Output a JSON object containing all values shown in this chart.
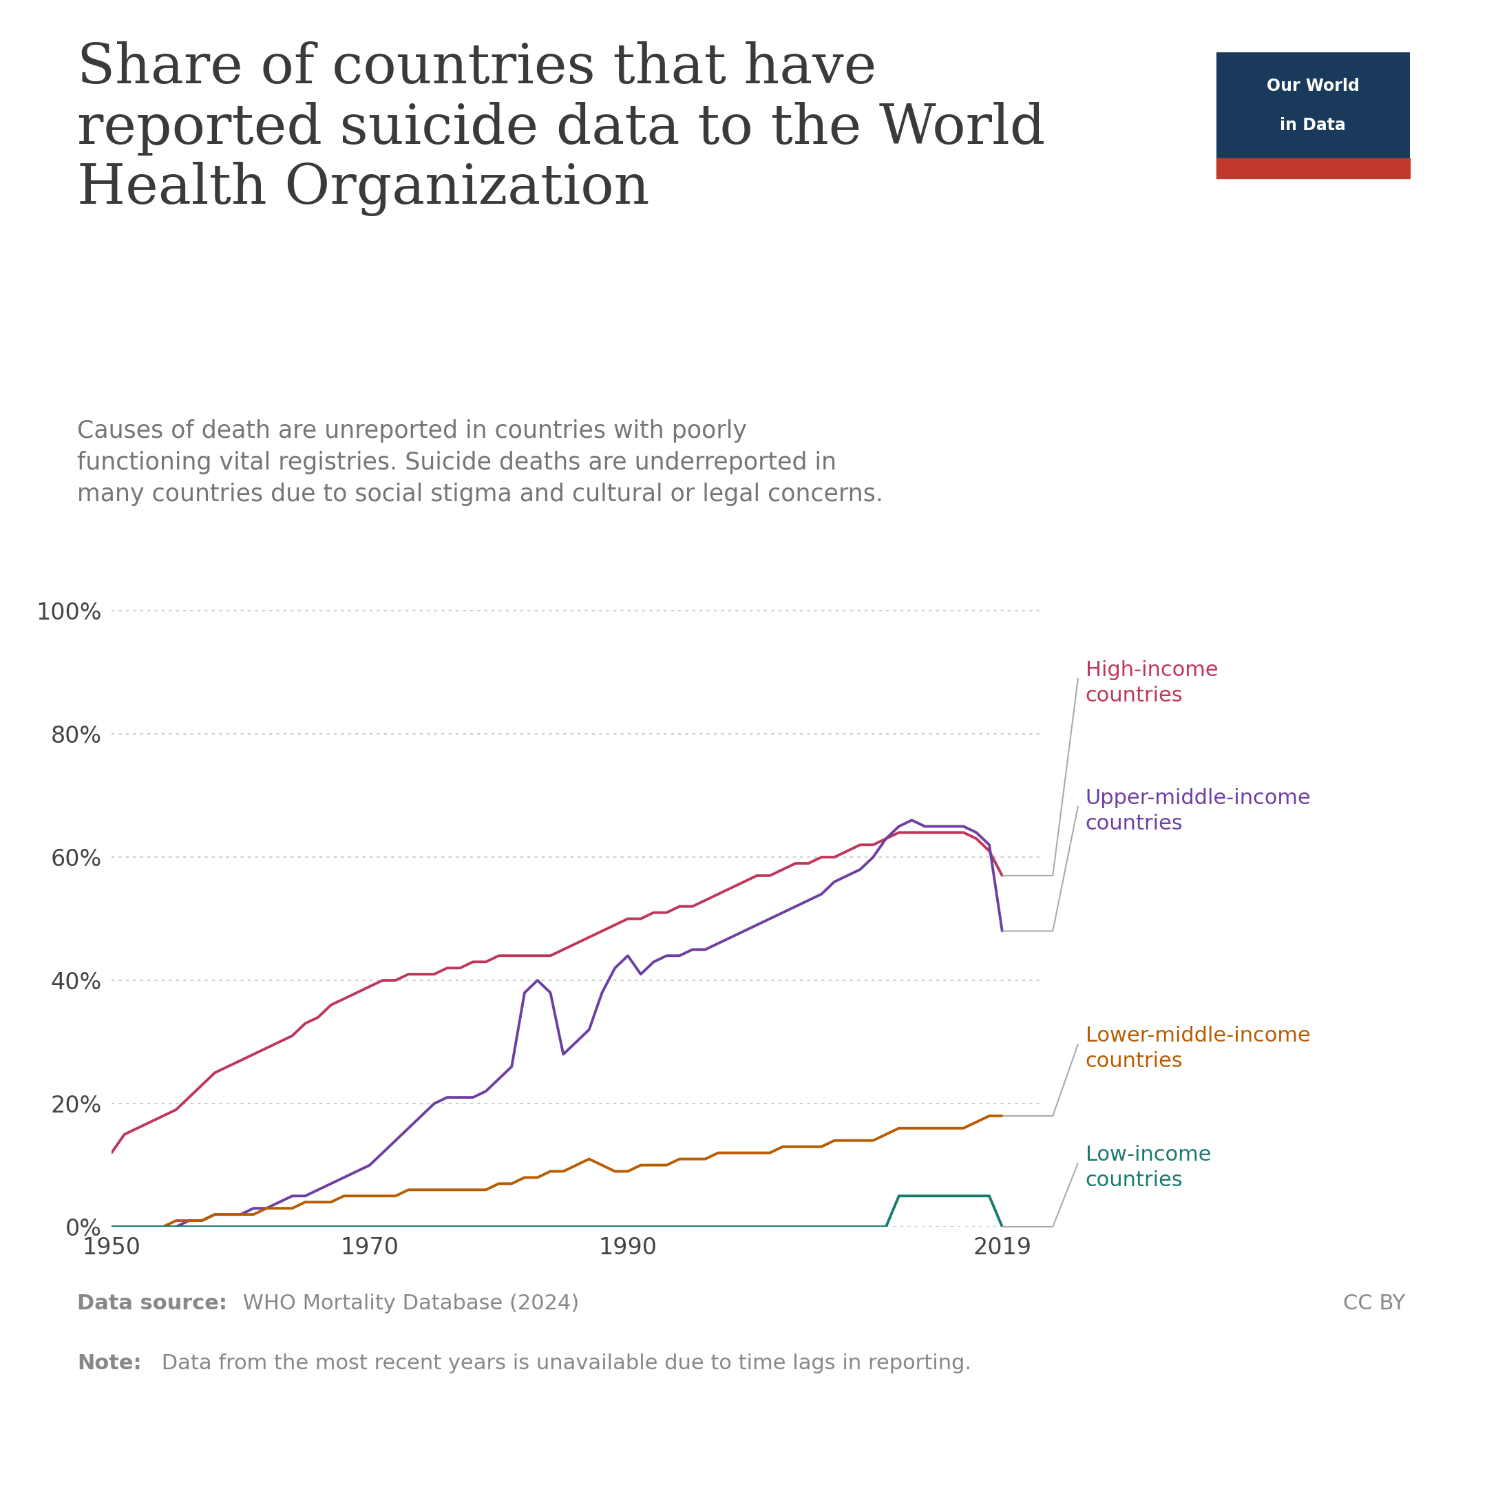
{
  "title": "Share of countries that have\nreported suicide data to the World\nHealth Organization",
  "subtitle": "Causes of death are unreported in countries with poorly\nfunctioning vital registries. Suicide deaths are underreported in\nmany countries due to social stigma and cultural or legal concerns.",
  "background_color": "#ffffff",
  "title_color": "#3a3a3a",
  "subtitle_color": "#767676",
  "footer_color": "#888888",
  "grid_color": "#cccccc",
  "series": {
    "high_income": {
      "label": "High-income\ncountries",
      "color": "#c0365a",
      "years": [
        1950,
        1951,
        1952,
        1953,
        1954,
        1955,
        1956,
        1957,
        1958,
        1959,
        1960,
        1961,
        1962,
        1963,
        1964,
        1965,
        1966,
        1967,
        1968,
        1969,
        1970,
        1971,
        1972,
        1973,
        1974,
        1975,
        1976,
        1977,
        1978,
        1979,
        1980,
        1981,
        1982,
        1983,
        1984,
        1985,
        1986,
        1987,
        1988,
        1989,
        1990,
        1991,
        1992,
        1993,
        1994,
        1995,
        1996,
        1997,
        1998,
        1999,
        2000,
        2001,
        2002,
        2003,
        2004,
        2005,
        2006,
        2007,
        2008,
        2009,
        2010,
        2011,
        2012,
        2013,
        2014,
        2015,
        2016,
        2017,
        2018,
        2019
      ],
      "values": [
        12,
        15,
        16,
        17,
        18,
        19,
        21,
        23,
        25,
        26,
        27,
        28,
        29,
        30,
        31,
        33,
        34,
        36,
        37,
        38,
        39,
        40,
        40,
        41,
        41,
        41,
        42,
        42,
        43,
        43,
        44,
        44,
        44,
        44,
        44,
        45,
        46,
        47,
        48,
        49,
        50,
        50,
        51,
        51,
        52,
        52,
        53,
        54,
        55,
        56,
        57,
        57,
        58,
        59,
        59,
        60,
        60,
        61,
        62,
        62,
        63,
        64,
        64,
        64,
        64,
        64,
        64,
        63,
        61,
        57
      ]
    },
    "upper_middle_income": {
      "label": "Upper-middle-income\ncountries",
      "color": "#6e3fa3",
      "years": [
        1950,
        1951,
        1952,
        1953,
        1954,
        1955,
        1956,
        1957,
        1958,
        1959,
        1960,
        1961,
        1962,
        1963,
        1964,
        1965,
        1966,
        1967,
        1968,
        1969,
        1970,
        1971,
        1972,
        1973,
        1974,
        1975,
        1976,
        1977,
        1978,
        1979,
        1980,
        1981,
        1982,
        1983,
        1984,
        1985,
        1986,
        1987,
        1988,
        1989,
        1990,
        1991,
        1992,
        1993,
        1994,
        1995,
        1996,
        1997,
        1998,
        1999,
        2000,
        2001,
        2002,
        2003,
        2004,
        2005,
        2006,
        2007,
        2008,
        2009,
        2010,
        2011,
        2012,
        2013,
        2014,
        2015,
        2016,
        2017,
        2018,
        2019
      ],
      "values": [
        0,
        0,
        0,
        0,
        0,
        0,
        1,
        1,
        2,
        2,
        2,
        3,
        3,
        4,
        5,
        5,
        6,
        7,
        8,
        9,
        10,
        12,
        14,
        16,
        18,
        20,
        21,
        21,
        21,
        22,
        24,
        26,
        38,
        40,
        38,
        28,
        30,
        32,
        38,
        42,
        44,
        41,
        43,
        44,
        44,
        45,
        45,
        46,
        47,
        48,
        49,
        50,
        51,
        52,
        53,
        54,
        56,
        57,
        58,
        60,
        63,
        65,
        66,
        65,
        65,
        65,
        65,
        64,
        62,
        48
      ]
    },
    "lower_middle_income": {
      "label": "Lower-middle-income\ncountries",
      "color": "#b85c00",
      "years": [
        1950,
        1951,
        1952,
        1953,
        1954,
        1955,
        1956,
        1957,
        1958,
        1959,
        1960,
        1961,
        1962,
        1963,
        1964,
        1965,
        1966,
        1967,
        1968,
        1969,
        1970,
        1971,
        1972,
        1973,
        1974,
        1975,
        1976,
        1977,
        1978,
        1979,
        1980,
        1981,
        1982,
        1983,
        1984,
        1985,
        1986,
        1987,
        1988,
        1989,
        1990,
        1991,
        1992,
        1993,
        1994,
        1995,
        1996,
        1997,
        1998,
        1999,
        2000,
        2001,
        2002,
        2003,
        2004,
        2005,
        2006,
        2007,
        2008,
        2009,
        2010,
        2011,
        2012,
        2013,
        2014,
        2015,
        2016,
        2017,
        2018,
        2019
      ],
      "values": [
        0,
        0,
        0,
        0,
        0,
        1,
        1,
        1,
        2,
        2,
        2,
        2,
        3,
        3,
        3,
        4,
        4,
        4,
        5,
        5,
        5,
        5,
        5,
        6,
        6,
        6,
        6,
        6,
        6,
        6,
        7,
        7,
        8,
        8,
        9,
        9,
        10,
        11,
        10,
        9,
        9,
        10,
        10,
        10,
        11,
        11,
        11,
        12,
        12,
        12,
        12,
        12,
        13,
        13,
        13,
        13,
        14,
        14,
        14,
        14,
        15,
        16,
        16,
        16,
        16,
        16,
        16,
        17,
        18,
        18
      ]
    },
    "low_income": {
      "label": "Low-income\ncountries",
      "color": "#197b6e",
      "years": [
        1950,
        1951,
        1952,
        1953,
        1954,
        1955,
        1956,
        1957,
        1958,
        1959,
        1960,
        1961,
        1962,
        1963,
        1964,
        1965,
        1966,
        1967,
        1968,
        1969,
        1970,
        1971,
        1972,
        1973,
        1974,
        1975,
        1976,
        1977,
        1978,
        1979,
        1980,
        1981,
        1982,
        1983,
        1984,
        1985,
        1986,
        1987,
        1988,
        1989,
        1990,
        1991,
        1992,
        1993,
        1994,
        1995,
        1996,
        1997,
        1998,
        1999,
        2000,
        2001,
        2002,
        2003,
        2004,
        2005,
        2006,
        2007,
        2008,
        2009,
        2010,
        2011,
        2012,
        2013,
        2014,
        2015,
        2016,
        2017,
        2018,
        2019
      ],
      "values": [
        0,
        0,
        0,
        0,
        0,
        0,
        0,
        0,
        0,
        0,
        0,
        0,
        0,
        0,
        0,
        0,
        0,
        0,
        0,
        0,
        0,
        0,
        0,
        0,
        0,
        0,
        0,
        0,
        0,
        0,
        0,
        0,
        0,
        0,
        0,
        0,
        0,
        0,
        0,
        0,
        0,
        0,
        0,
        0,
        0,
        0,
        0,
        0,
        0,
        0,
        0,
        0,
        0,
        0,
        0,
        0,
        0,
        0,
        0,
        0,
        0,
        5,
        5,
        5,
        5,
        5,
        5,
        5,
        5,
        0
      ]
    }
  },
  "yticks": [
    0,
    20,
    40,
    60,
    80,
    100
  ],
  "xticks": [
    1950,
    1970,
    1990,
    2019
  ],
  "xlim": [
    1950,
    2022
  ],
  "ylim": [
    0,
    105
  ],
  "legend_entries": [
    {
      "key": "high_income",
      "y_data": 57,
      "text": "High-income\ncountries",
      "color": "#c0365a",
      "anchor_y": 57
    },
    {
      "key": "upper_middle_income",
      "y_data": 48,
      "text": "Upper-middle-income\ncountries",
      "color": "#6e3fa3",
      "anchor_y": 48
    },
    {
      "key": "lower_middle_income",
      "y_data": 18,
      "text": "Lower-middle-income\ncountries",
      "color": "#b85c00",
      "anchor_y": 18
    },
    {
      "key": "low_income",
      "y_data": 0,
      "text": "Low-income\ncountries",
      "color": "#197b6e",
      "anchor_y": 0
    }
  ]
}
